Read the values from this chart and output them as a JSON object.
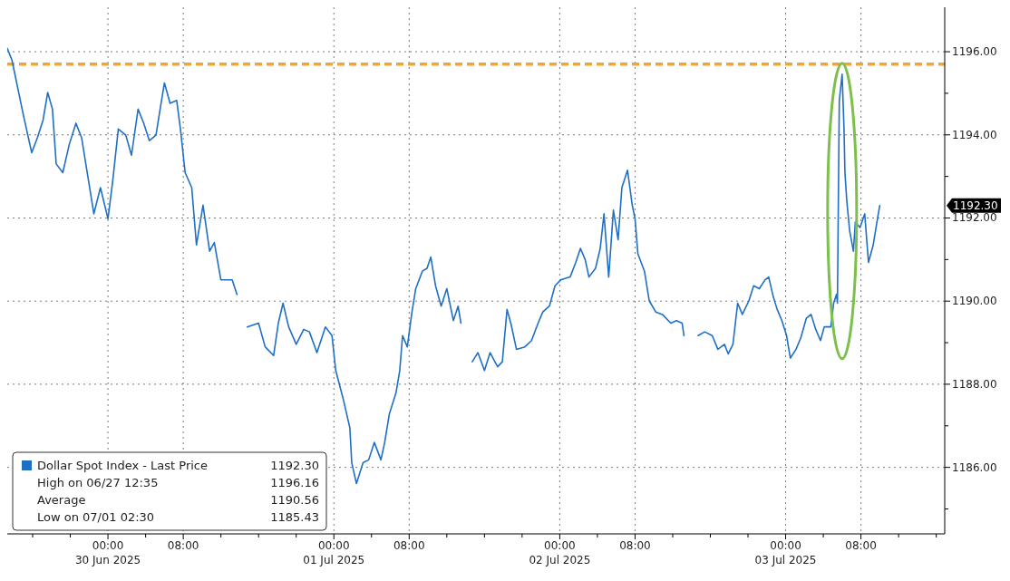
{
  "chart_data": {
    "type": "line",
    "x": [
      "2025-06-29T13:18",
      "2025-06-29T13:48",
      "2025-06-29T15:00",
      "2025-06-29T15:54",
      "2025-06-29T16:30",
      "2025-06-29T17:06",
      "2025-06-29T17:36",
      "2025-06-29T18:06",
      "2025-06-29T18:30",
      "2025-06-29T19:12",
      "2025-06-29T19:54",
      "2025-06-29T20:36",
      "2025-06-29T21:12",
      "2025-06-29T21:48",
      "2025-06-29T22:30",
      "2025-06-29T23:12",
      "2025-06-30T00:00",
      "2025-06-30T00:30",
      "2025-06-30T01:06",
      "2025-06-30T01:54",
      "2025-06-30T02:30",
      "2025-06-30T03:12",
      "2025-06-30T03:48",
      "2025-06-30T04:24",
      "2025-06-30T05:06",
      "2025-06-30T05:36",
      "2025-06-30T06:00",
      "2025-06-30T06:36",
      "2025-06-30T07:18",
      "2025-06-30T07:42",
      "2025-06-30T08:12",
      "2025-06-30T08:54",
      "2025-06-30T09:24",
      "2025-06-30T10:06",
      "2025-06-30T10:48",
      "2025-06-30T11:18",
      "2025-06-30T12:00",
      "2025-06-30T12:36",
      "2025-06-30T13:12",
      "2025-06-30T13:42",
      "2025-06-30T14:12",
      "2025-06-30T14:48",
      "2025-06-30T16:00",
      "2025-06-30T16:42",
      "2025-06-30T17:36",
      "2025-06-30T18:06",
      "2025-06-30T18:36",
      "2025-06-30T19:12",
      "2025-06-30T20:00",
      "2025-06-30T20:48",
      "2025-06-30T21:24",
      "2025-06-30T22:12",
      "2025-06-30T23:06",
      "2025-06-30T23:48",
      "2025-07-01T00:12",
      "2025-07-01T01:00",
      "2025-07-01T01:42",
      "2025-07-01T01:54",
      "2025-07-01T02:24",
      "2025-07-01T03:06",
      "2025-07-01T03:42",
      "2025-07-01T04:18",
      "2025-07-01T05:00",
      "2025-07-01T05:24",
      "2025-07-01T05:54",
      "2025-07-01T06:36",
      "2025-07-01T07:00",
      "2025-07-01T07:18",
      "2025-07-01T07:48",
      "2025-07-01T08:18",
      "2025-07-01T08:42",
      "2025-07-01T09:24",
      "2025-07-01T09:54",
      "2025-07-01T10:18",
      "2025-07-01T10:48",
      "2025-07-01T11:24",
      "2025-07-01T12:00",
      "2025-07-01T12:42",
      "2025-07-01T13:12",
      "2025-07-01T13:30",
      "2025-07-01T14:00",
      "2025-07-01T14:42",
      "2025-07-01T15:18",
      "2025-07-01T16:00",
      "2025-07-01T16:36",
      "2025-07-01T17:24",
      "2025-07-01T17:54",
      "2025-07-01T18:24",
      "2025-07-01T18:48",
      "2025-07-01T19:24",
      "2025-07-01T20:18",
      "2025-07-01T21:00",
      "2025-07-01T21:42",
      "2025-07-01T22:12",
      "2025-07-01T22:54",
      "2025-07-01T23:30",
      "2025-07-02T00:06",
      "2025-07-02T01:06",
      "2025-07-02T01:42",
      "2025-07-02T02:12",
      "2025-07-02T02:42",
      "2025-07-02T03:06",
      "2025-07-02T03:48",
      "2025-07-02T04:18",
      "2025-07-02T04:42",
      "2025-07-02T05:12",
      "2025-07-02T05:42",
      "2025-07-02T06:12",
      "2025-07-02T06:36",
      "2025-07-02T07:12",
      "2025-07-02T07:42",
      "2025-07-02T08:00",
      "2025-07-02T08:18",
      "2025-07-02T09:00",
      "2025-07-02T09:30",
      "2025-07-02T10:12",
      "2025-07-02T10:54",
      "2025-07-02T11:48",
      "2025-07-02T12:24",
      "2025-07-02T13:00",
      "2025-07-02T13:12",
      "2025-07-02T14:00",
      "2025-07-02T14:42",
      "2025-07-02T15:24",
      "2025-07-02T16:12",
      "2025-07-02T16:48",
      "2025-07-02T17:30",
      "2025-07-02T17:54",
      "2025-07-02T18:24",
      "2025-07-02T18:54",
      "2025-07-02T19:24",
      "2025-07-02T20:06",
      "2025-07-02T20:36",
      "2025-07-02T21:12",
      "2025-07-02T21:48",
      "2025-07-02T22:12",
      "2025-07-02T22:42",
      "2025-07-02T23:06",
      "2025-07-02T23:36",
      "2025-07-03T00:06",
      "2025-07-03T00:30",
      "2025-07-03T01:06",
      "2025-07-03T01:36",
      "2025-07-03T02:12",
      "2025-07-03T02:42",
      "2025-07-03T03:12",
      "2025-07-03T03:42",
      "2025-07-03T04:06",
      "2025-07-03T04:48",
      "2025-07-03T05:06",
      "2025-07-03T05:24",
      "2025-07-03T05:30",
      "2025-07-03T05:42",
      "2025-07-03T06:00",
      "2025-07-03T06:12",
      "2025-07-03T06:18",
      "2025-07-03T06:30",
      "2025-07-03T06:48",
      "2025-07-03T07:12",
      "2025-07-03T07:24",
      "2025-07-03T07:54",
      "2025-07-03T08:24",
      "2025-07-03T08:48",
      "2025-07-03T09:18",
      "2025-07-03T09:48",
      "2025-07-03T10:00"
    ],
    "series": [
      {
        "name": "Dollar Spot Index - Last Price",
        "color": "#1f6fc5",
        "values": [
          1196.08,
          1195.8,
          1194.49,
          1193.57,
          1193.93,
          1194.35,
          1195.02,
          1194.62,
          1193.3,
          1193.09,
          1193.78,
          1194.28,
          1193.93,
          1193.09,
          1192.1,
          1192.73,
          1191.98,
          1192.88,
          1194.14,
          1193.99,
          1193.51,
          1194.62,
          1194.28,
          1193.86,
          1193.99,
          1194.7,
          1195.25,
          1194.76,
          1194.83,
          1194.14,
          1193.09,
          1192.73,
          1191.35,
          1192.31,
          1191.2,
          1191.41,
          1190.51,
          1190.51,
          1190.51,
          1190.16,
          null,
          1189.38,
          1189.47,
          1188.9,
          1188.69,
          1189.47,
          1189.95,
          1189.38,
          1188.96,
          1189.32,
          1189.26,
          1188.76,
          1189.38,
          1189.17,
          1188.33,
          1187.64,
          1186.95,
          1186.11,
          1185.61,
          1186.11,
          1186.18,
          1186.6,
          1186.18,
          1186.6,
          1187.29,
          1187.79,
          1188.33,
          1189.17,
          1188.9,
          1189.74,
          1190.3,
          1190.72,
          1190.79,
          1191.06,
          1190.37,
          1189.88,
          1190.3,
          1189.53,
          1189.88,
          1189.47,
          null,
          1188.54,
          1188.76,
          1188.33,
          1188.76,
          1188.42,
          1188.54,
          1189.8,
          1189.47,
          1188.84,
          1188.9,
          1189.05,
          1189.47,
          1189.74,
          1189.88,
          1190.37,
          1190.51,
          1190.58,
          1190.93,
          1191.27,
          1191.0,
          1190.58,
          1190.79,
          1191.27,
          1192.1,
          1190.58,
          1192.19,
          1191.48,
          1192.73,
          1193.15,
          1192.31,
          1191.98,
          1191.14,
          1190.72,
          1190.01,
          1189.74,
          1189.68,
          1189.47,
          1189.53,
          1189.47,
          1189.17,
          null,
          1189.17,
          1189.26,
          1189.17,
          1188.84,
          1188.96,
          1188.73,
          1188.96,
          1189.95,
          1189.68,
          1190.01,
          1190.37,
          1190.3,
          1190.51,
          1190.58,
          1190.09,
          1189.8,
          1189.53,
          1189.17,
          1188.63,
          1188.84,
          1189.11,
          1189.59,
          1189.68,
          1189.32,
          1189.05,
          1189.38,
          1189.38,
          1189.95,
          1190.16,
          1189.95,
          1194.83,
          1195.46,
          1194.14,
          1193.09,
          1192.4,
          1191.69,
          1191.2,
          1191.9,
          1191.77,
          1192.1,
          1190.93,
          1191.35,
          1192.04,
          1192.3
        ]
      }
    ],
    "xlim": [
      "2025-06-29T13:18",
      "2025-07-03T16:54"
    ],
    "xticks": [
      {
        "value": "2025-06-29T16:00",
        "label": null
      },
      {
        "value": "2025-06-29T20:00",
        "label": null
      },
      {
        "value": "2025-06-30T00:00",
        "label": "00:00\n30 Jun 2025"
      },
      {
        "value": "2025-06-30T04:00",
        "label": null
      },
      {
        "value": "2025-06-30T08:00",
        "label": "08:00"
      },
      {
        "value": "2025-06-30T12:00",
        "label": null
      },
      {
        "value": "2025-06-30T16:00",
        "label": null
      },
      {
        "value": "2025-06-30T20:00",
        "label": null
      },
      {
        "value": "2025-07-01T00:00",
        "label": "00:00\n01 Jul 2025"
      },
      {
        "value": "2025-07-01T04:00",
        "label": null
      },
      {
        "value": "2025-07-01T08:00",
        "label": "08:00"
      },
      {
        "value": "2025-07-01T12:00",
        "label": null
      },
      {
        "value": "2025-07-01T16:00",
        "label": null
      },
      {
        "value": "2025-07-01T20:00",
        "label": null
      },
      {
        "value": "2025-07-02T00:00",
        "label": "00:00\n02 Jul 2025"
      },
      {
        "value": "2025-07-02T04:00",
        "label": null
      },
      {
        "value": "2025-07-02T08:00",
        "label": "08:00"
      },
      {
        "value": "2025-07-02T12:00",
        "label": null
      },
      {
        "value": "2025-07-02T16:00",
        "label": null
      },
      {
        "value": "2025-07-02T20:00",
        "label": null
      },
      {
        "value": "2025-07-03T00:00",
        "label": "00:00\n03 Jul 2025"
      },
      {
        "value": "2025-07-03T04:00",
        "label": null
      },
      {
        "value": "2025-07-03T08:00",
        "label": "08:00"
      },
      {
        "value": "2025-07-03T12:00",
        "label": null
      },
      {
        "value": "2025-07-03T16:00",
        "label": null
      }
    ],
    "ylim": [
      1184.4,
      1197.07
    ],
    "yticks": [
      {
        "value": 1185,
        "label": null
      },
      {
        "value": 1186,
        "label": "1186.00"
      },
      {
        "value": 1187,
        "label": null
      },
      {
        "value": 1188,
        "label": "1188.00"
      },
      {
        "value": 1189,
        "label": null
      },
      {
        "value": 1190,
        "label": "1190.00"
      },
      {
        "value": 1191,
        "label": null
      },
      {
        "value": 1192,
        "label": "1192.00"
      },
      {
        "value": 1193,
        "label": null
      },
      {
        "value": 1194,
        "label": "1194.00"
      },
      {
        "value": 1195,
        "label": null
      },
      {
        "value": 1196,
        "label": "1196.00"
      }
    ],
    "grid": true,
    "legend": "bottom left",
    "line_style": "solid",
    "marker": "none",
    "ref_lines": [
      {
        "axis": "y",
        "value": 1195.7,
        "label": null,
        "color": "#f5a431",
        "line_style": "dashed"
      }
    ],
    "annotations": [
      "1192.30",
      "1192.30",
      "High on 06/27 12:35",
      "1196.16",
      "Average",
      "1190.56",
      "Low on 07/01 02:30",
      "1185.43"
    ]
  }
}
